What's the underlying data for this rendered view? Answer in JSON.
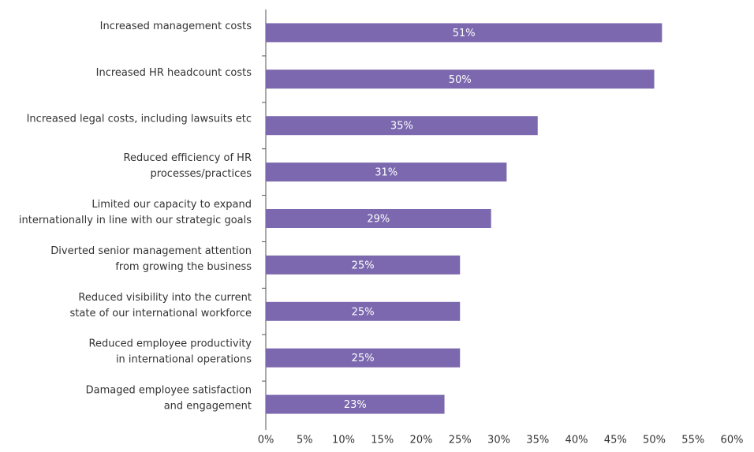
{
  "chart_data": {
    "type": "bar",
    "orientation": "horizontal",
    "categories": [
      "Increased management costs",
      "Increased HR headcount costs",
      "Increased legal costs, including lawsuits etc",
      "Reduced efficiency of HR\nprocesses/practices",
      "Limited our capacity to expand\ninternationally in line with our strategic goals",
      "Diverted senior management attention\nfrom growing the business",
      "Reduced visibility into the current\nstate of our international workforce",
      "Reduced employee productivity\nin international operations",
      "Damaged employee satisfaction\nand engagement"
    ],
    "values": [
      51,
      50,
      35,
      31,
      29,
      25,
      25,
      25,
      23
    ],
    "value_labels": [
      "51%",
      "50%",
      "35%",
      "31%",
      "29%",
      "25%",
      "25%",
      "25%",
      "23%"
    ],
    "color": "#7b68ae",
    "xlim": [
      0,
      60
    ],
    "xticks": [
      {
        "value": 0,
        "label": "0%"
      },
      {
        "value": 5,
        "label": "5%"
      },
      {
        "value": 10,
        "label": "10%"
      },
      {
        "value": 15,
        "label": "15%"
      },
      {
        "value": 20,
        "label": "20%"
      },
      {
        "value": 25,
        "label": "25%"
      },
      {
        "value": 30,
        "label": "30%"
      },
      {
        "value": 35,
        "label": "35%"
      },
      {
        "value": 40,
        "label": "40%"
      },
      {
        "value": 45,
        "label": "45%"
      },
      {
        "value": 50,
        "label": "50%"
      },
      {
        "value": 55,
        "label": "55%"
      },
      {
        "value": 60,
        "label": "60%"
      }
    ]
  }
}
